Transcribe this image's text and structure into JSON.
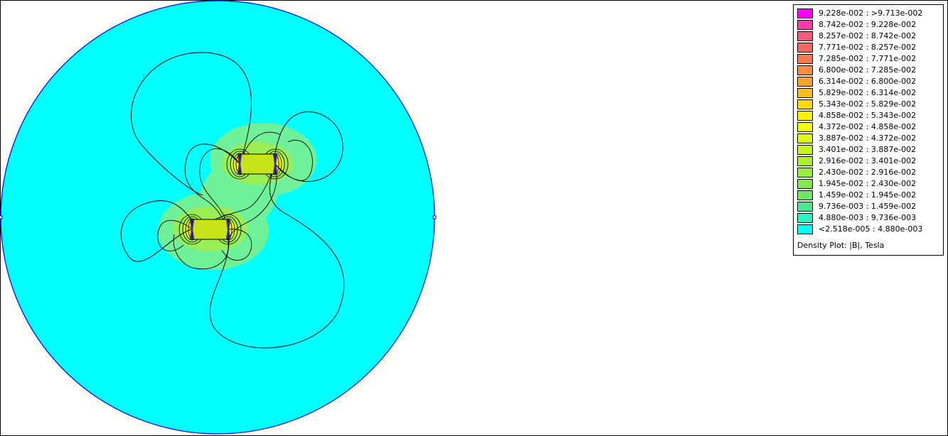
{
  "plot": {
    "domain_fill": "#00ffff",
    "domain_stroke": "#0000ff",
    "halo_fill": "#6ff19a",
    "contour_color": "#000000",
    "conductor_color": "#3b2a8c"
  },
  "legend": {
    "caption": "Density Plot: |B|, Tesla",
    "items": [
      {
        "label": "9.228e-002 : >9.713e-002",
        "color": "#ff00ff"
      },
      {
        "label": "8.742e-002 : 9.228e-002",
        "color": "#f83ca8"
      },
      {
        "label": "8.257e-002 : 8.742e-002",
        "color": "#f45a7c"
      },
      {
        "label": "7.771e-002 : 8.257e-002",
        "color": "#f36a5e"
      },
      {
        "label": "7.285e-002 : 7.771e-002",
        "color": "#f47c4a"
      },
      {
        "label": "6.800e-002 : 7.285e-002",
        "color": "#f6903c"
      },
      {
        "label": "6.314e-002 : 6.800e-002",
        "color": "#f8a62a"
      },
      {
        "label": "5.829e-002 : 6.314e-002",
        "color": "#fbbf1a"
      },
      {
        "label": "5.343e-002 : 5.829e-002",
        "color": "#fdd80a"
      },
      {
        "label": "4.858e-002 : 5.343e-002",
        "color": "#fff200"
      },
      {
        "label": "4.372e-002 : 4.858e-002",
        "color": "#f2ff00"
      },
      {
        "label": "3.887e-002 : 4.372e-002",
        "color": "#dcfb10"
      },
      {
        "label": "3.401e-002 : 3.887e-002",
        "color": "#c4f520"
      },
      {
        "label": "2.916e-002 : 3.401e-002",
        "color": "#aef030"
      },
      {
        "label": "2.430e-002 : 2.916e-002",
        "color": "#98ec40"
      },
      {
        "label": "1.945e-002 : 2.430e-002",
        "color": "#82e950"
      },
      {
        "label": "1.459e-002 : 1.945e-002",
        "color": "#6ee66a"
      },
      {
        "label": "9.736e-003 : 1.459e-002",
        "color": "#4ee690"
      },
      {
        "label": "4.880e-003 : 9.736e-003",
        "color": "#2ef2c0"
      },
      {
        "label": "<2.518e-005 : 4.880e-003",
        "color": "#00ffff"
      }
    ]
  }
}
